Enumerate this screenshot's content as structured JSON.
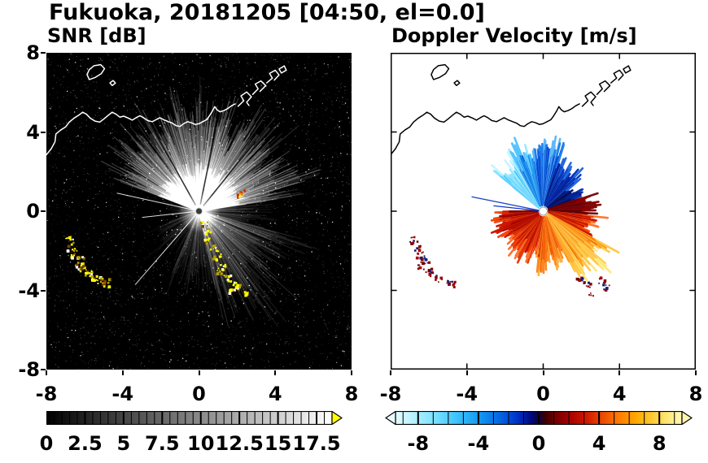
{
  "title": "Fukuoka, 20181205 [04:50, el=0.0]",
  "observation": {
    "station": "Fukuoka",
    "date": "20181205",
    "time": "04:50",
    "elevation": "el=0.0"
  },
  "coastline": {
    "mainland": [
      [
        -8.0,
        2.85
      ],
      [
        -7.75,
        3.15
      ],
      [
        -7.55,
        3.5
      ],
      [
        -7.5,
        3.9
      ],
      [
        -7.25,
        4.1
      ],
      [
        -7.0,
        4.25
      ],
      [
        -6.8,
        4.5
      ],
      [
        -6.55,
        4.7
      ],
      [
        -6.3,
        4.85
      ],
      [
        -6.1,
        5.0
      ],
      [
        -5.9,
        4.9
      ],
      [
        -5.7,
        4.7
      ],
      [
        -5.45,
        4.55
      ],
      [
        -5.2,
        4.5
      ],
      [
        -5.0,
        4.65
      ],
      [
        -4.75,
        4.85
      ],
      [
        -4.55,
        5.0
      ],
      [
        -4.35,
        4.9
      ],
      [
        -4.15,
        4.75
      ],
      [
        -3.95,
        4.8
      ],
      [
        -3.7,
        4.7
      ],
      [
        -3.5,
        4.6
      ],
      [
        -3.3,
        4.72
      ],
      [
        -3.1,
        4.82
      ],
      [
        -2.9,
        4.72
      ],
      [
        -2.7,
        4.58
      ],
      [
        -2.45,
        4.52
      ],
      [
        -2.25,
        4.62
      ],
      [
        -2.05,
        4.72
      ],
      [
        -1.85,
        4.62
      ],
      [
        -1.6,
        4.52
      ],
      [
        -1.4,
        4.45
      ],
      [
        -1.2,
        4.32
      ],
      [
        -1.0,
        4.28
      ],
      [
        -0.8,
        4.42
      ],
      [
        -0.6,
        4.52
      ],
      [
        -0.4,
        4.47
      ],
      [
        -0.2,
        4.38
      ],
      [
        0.0,
        4.42
      ],
      [
        0.2,
        4.52
      ],
      [
        0.4,
        4.62
      ],
      [
        0.55,
        4.82
      ],
      [
        0.7,
        5.05
      ],
      [
        0.82,
        5.28
      ],
      [
        0.95,
        5.12
      ],
      [
        1.1,
        5.02
      ],
      [
        1.3,
        5.08
      ],
      [
        1.5,
        5.18
      ],
      [
        1.7,
        5.32
      ],
      [
        1.9,
        5.42
      ]
    ],
    "harbor": [
      [
        [
          2.05,
          5.3
        ],
        [
          2.35,
          5.58
        ],
        [
          2.2,
          5.82
        ],
        [
          2.5,
          6.02
        ],
        [
          2.75,
          5.78
        ],
        [
          2.5,
          5.5
        ],
        [
          2.62,
          5.34
        ]
      ],
      [
        [
          2.82,
          5.9
        ],
        [
          3.1,
          6.18
        ],
        [
          2.95,
          6.42
        ],
        [
          3.25,
          6.58
        ],
        [
          3.5,
          6.34
        ],
        [
          3.2,
          6.05
        ]
      ],
      [
        [
          3.55,
          6.48
        ],
        [
          3.85,
          6.72
        ],
        [
          3.7,
          6.96
        ],
        [
          4.0,
          7.12
        ],
        [
          4.2,
          6.88
        ],
        [
          3.95,
          6.62
        ]
      ],
      [
        [
          4.32,
          6.98
        ],
        [
          4.58,
          7.12
        ],
        [
          4.47,
          7.34
        ],
        [
          4.2,
          7.18
        ],
        [
          4.32,
          6.98
        ]
      ]
    ],
    "island": [
      [
        -5.75,
        6.65
      ],
      [
        -5.45,
        6.75
      ],
      [
        -5.12,
        6.95
      ],
      [
        -4.95,
        7.2
      ],
      [
        -5.15,
        7.4
      ],
      [
        -5.5,
        7.35
      ],
      [
        -5.75,
        7.15
      ],
      [
        -5.87,
        6.9
      ]
    ],
    "islet": [
      [
        -4.55,
        6.35
      ],
      [
        -4.38,
        6.47
      ],
      [
        -4.5,
        6.6
      ],
      [
        -4.67,
        6.48
      ]
    ]
  },
  "chart_data": [
    {
      "type": "heatmap",
      "subtype": "radar-ppi",
      "title": "SNR [dB]",
      "seed": 20181205,
      "xlim": [
        -8,
        8
      ],
      "ylim": [
        -8,
        8
      ],
      "xticks": [
        -8,
        -4,
        0,
        4,
        8
      ],
      "xtick_labels": [
        "-8",
        "-4",
        "0",
        "4",
        "8"
      ],
      "yticks": [
        8,
        4,
        0,
        -4,
        -8
      ],
      "ytick_labels": [
        "8",
        "4",
        "0",
        "-4",
        "-8"
      ],
      "radar_center": [
        0,
        0
      ],
      "background": "#000000",
      "core_fan": [
        -70,
        82
      ],
      "echo_sectors": [
        {
          "az_start": -70,
          "az_end": 82,
          "range": [
            2.8,
            6.6
          ],
          "intensity": [
            0.1,
            0.3
          ],
          "density": 1.0
        },
        {
          "az_start": 82,
          "az_end": 104,
          "range": [
            1.5,
            4.0
          ],
          "intensity": [
            0.04,
            0.1
          ],
          "density": 0.55
        },
        {
          "az_start": 104,
          "az_end": 168,
          "range": [
            2.5,
            6.8
          ],
          "intensity": [
            0.05,
            0.16
          ],
          "density": 0.85
        },
        {
          "az_start": 168,
          "az_end": 205,
          "range": [
            1.5,
            4.5
          ],
          "intensity": [
            0.03,
            0.1
          ],
          "density": 0.5
        },
        {
          "az_start": 205,
          "az_end": 252,
          "range": [
            1.0,
            3.5
          ],
          "intensity": [
            0.02,
            0.07
          ],
          "density": 0.35
        },
        {
          "az_start": 252,
          "az_end": 290,
          "range": [
            0.8,
            2.5
          ],
          "intensity": [
            0.02,
            0.05
          ],
          "density": 0.25
        }
      ],
      "bright_rays": [
        {
          "az": 282,
          "len": 4.4
        },
        {
          "az": 264,
          "len": 3.0
        },
        {
          "az": 222,
          "len": 5.0
        }
      ],
      "shadow_rays": [
        {
          "az": 12,
          "len": 5.6
        },
        {
          "az": 40,
          "len": 4.6
        },
        {
          "az": -30,
          "len": 5.2
        }
      ],
      "strong_echoes": {
        "palette": [
          "#ffff00",
          "#ffff00",
          "#ffff00",
          "#ffffff",
          "#b0a000",
          "#804000"
        ],
        "arc_southwest": [
          [
            -6.75,
            -1.45
          ],
          [
            -6.65,
            -1.85
          ],
          [
            -6.45,
            -2.2
          ],
          [
            -6.2,
            -2.5
          ],
          [
            -6.35,
            -2.75
          ],
          [
            -6.0,
            -2.95
          ],
          [
            -5.75,
            -3.2
          ],
          [
            -5.45,
            -3.4
          ],
          [
            -5.1,
            -3.55
          ],
          [
            -4.85,
            -3.65
          ]
        ],
        "chain_southeast": [
          [
            0.3,
            -0.65
          ],
          [
            0.5,
            -1.05
          ],
          [
            0.45,
            -1.5
          ],
          [
            0.75,
            -1.85
          ],
          [
            1.0,
            -2.15
          ],
          [
            0.9,
            -2.55
          ],
          [
            1.2,
            -2.85
          ],
          [
            1.15,
            -3.15
          ],
          [
            1.5,
            -3.4
          ],
          [
            1.85,
            -3.6
          ],
          [
            2.15,
            -3.85
          ],
          [
            2.4,
            -4.15
          ],
          [
            1.75,
            -4.0
          ]
        ],
        "spur": [
          [
            2.05,
            0.8
          ],
          [
            2.3,
            0.95
          ]
        ]
      },
      "colorbar": {
        "min": 0,
        "max": 18.5,
        "ticks": [
          0,
          2.5,
          5,
          7.5,
          10,
          12.5,
          15,
          17.5
        ],
        "tick_labels": [
          "0",
          "2.5",
          "5",
          "7.5",
          "10",
          "12.5",
          "15",
          "17.5"
        ],
        "minor_step": 0.5,
        "major_step": 2.5,
        "gradient": [
          [
            "#000000",
            0
          ],
          [
            "#ffffff",
            1
          ]
        ],
        "arrow_high": "#ffff00",
        "units": "dB"
      }
    },
    {
      "type": "heatmap",
      "subtype": "radar-ppi",
      "title": "Doppler Velocity [m/s]",
      "seed": 450,
      "xlim": [
        -8,
        8
      ],
      "ylim": [
        -8,
        8
      ],
      "xticks": [
        -8,
        -4,
        0,
        4,
        8
      ],
      "xtick_labels": [
        "-8",
        "-4",
        "0",
        "4",
        "8"
      ],
      "yticks": [
        8,
        4,
        0,
        -4,
        -8
      ],
      "ytick_labels": [
        "8",
        "4",
        "0",
        "-4",
        "-8"
      ],
      "radar_center": [
        0,
        0
      ],
      "background": "#ffffff",
      "velocity_sectors": [
        {
          "az_start": -52,
          "az_end": -30,
          "range": [
            1.4,
            3.4
          ],
          "colors": [
            "#c8f4ff",
            "#8ce4ff",
            "#54ccff",
            "#2cb0f4"
          ]
        },
        {
          "az_start": -30,
          "az_end": -10,
          "range": [
            1.8,
            4.3
          ],
          "colors": [
            "#9ce8ff",
            "#54c4ff",
            "#1e96f0",
            "#0a64dc"
          ]
        },
        {
          "az_start": -10,
          "az_end": 18,
          "range": [
            1.8,
            4.1
          ],
          "colors": [
            "#60b8f8",
            "#2080ec",
            "#0848d0",
            "#0426a0"
          ]
        },
        {
          "az_start": 18,
          "az_end": 50,
          "range": [
            1.2,
            3.0
          ],
          "colors": [
            "#2468e0",
            "#0838c0",
            "#041c90",
            "#020e60"
          ]
        },
        {
          "az_start": 50,
          "az_end": 72,
          "range": [
            1.0,
            2.4
          ],
          "colors": [
            "#0830b0",
            "#041878",
            "#020a48",
            "#1c0a30"
          ]
        },
        {
          "az_start": 72,
          "az_end": 95,
          "range": [
            1.3,
            2.9
          ],
          "colors": [
            "#781010",
            "#8c0000",
            "#5a0006",
            "#3c0010"
          ]
        },
        {
          "az_start": 95,
          "az_end": 118,
          "range": [
            1.6,
            3.3
          ],
          "colors": [
            "#ff7830",
            "#f04800",
            "#c81400",
            "#960000"
          ]
        },
        {
          "az_start": 118,
          "az_end": 152,
          "range": [
            2.2,
            4.6
          ],
          "colors": [
            "#ffe878",
            "#ffc848",
            "#ff9c20",
            "#f06800"
          ]
        },
        {
          "az_start": 152,
          "az_end": 190,
          "range": [
            1.6,
            3.1
          ],
          "colors": [
            "#ffb040",
            "#ff8820",
            "#f05800",
            "#c83000"
          ]
        },
        {
          "az_start": 190,
          "az_end": 235,
          "range": [
            1.2,
            2.7
          ],
          "colors": [
            "#ff7030",
            "#e83800",
            "#c01000",
            "#900000"
          ]
        },
        {
          "az_start": 235,
          "az_end": 270,
          "range": [
            1.4,
            3.0
          ],
          "colors": [
            "#f04810",
            "#cc1800",
            "#a00000",
            "#780000"
          ]
        }
      ],
      "needle_rays": [
        {
          "az": 281,
          "len": 3.8,
          "color": "#1840c8"
        },
        {
          "az": 276,
          "len": 2.6,
          "color": "#0838c8"
        }
      ],
      "strong_echoes": {
        "palette": [
          "#8c0000",
          "#6a0000",
          "#a40000",
          "#141e78"
        ],
        "arc_southwest": [
          [
            -6.75,
            -1.45
          ],
          [
            -6.65,
            -1.85
          ],
          [
            -6.45,
            -2.2
          ],
          [
            -6.2,
            -2.5
          ],
          [
            -6.35,
            -2.75
          ],
          [
            -6.0,
            -2.95
          ],
          [
            -5.75,
            -3.2
          ],
          [
            -5.45,
            -3.4
          ],
          [
            -5.1,
            -3.55
          ],
          [
            -4.85,
            -3.65
          ]
        ],
        "chain_tail": [
          [
            1.95,
            -3.35
          ],
          [
            2.3,
            -3.75
          ],
          [
            2.6,
            -4.2
          ],
          [
            3.05,
            -3.5
          ],
          [
            3.35,
            -3.85
          ]
        ]
      },
      "colorbar": {
        "min": -9.5,
        "max": 9.5,
        "ticks": [
          -8,
          -4,
          0,
          4,
          8
        ],
        "tick_labels": [
          "-8",
          "-4",
          "0",
          "4",
          "8"
        ],
        "minor_step": 1,
        "major_step": 4,
        "gradient": [
          [
            "#e6fcff",
            0.0
          ],
          [
            "#b0f0ff",
            0.07
          ],
          [
            "#78e0ff",
            0.14
          ],
          [
            "#40c4fc",
            0.21
          ],
          [
            "#18a0f4",
            0.28
          ],
          [
            "#0878e8",
            0.34
          ],
          [
            "#0048d8",
            0.4
          ],
          [
            "#0020b0",
            0.445
          ],
          [
            "#000878",
            0.475
          ],
          [
            "#100040",
            0.5
          ],
          [
            "#400000",
            0.525
          ],
          [
            "#700000",
            0.555
          ],
          [
            "#a00000",
            0.6
          ],
          [
            "#cc1400",
            0.66
          ],
          [
            "#ec4800",
            0.72
          ],
          [
            "#ff7c00",
            0.78
          ],
          [
            "#ffa800",
            0.84
          ],
          [
            "#ffcc38",
            0.9
          ],
          [
            "#ffe878",
            0.95
          ],
          [
            "#fff8b8",
            1.0
          ]
        ],
        "arrow_low": "#eafcff",
        "arrow_high": "#fff6b0",
        "units": "m/s"
      }
    }
  ]
}
